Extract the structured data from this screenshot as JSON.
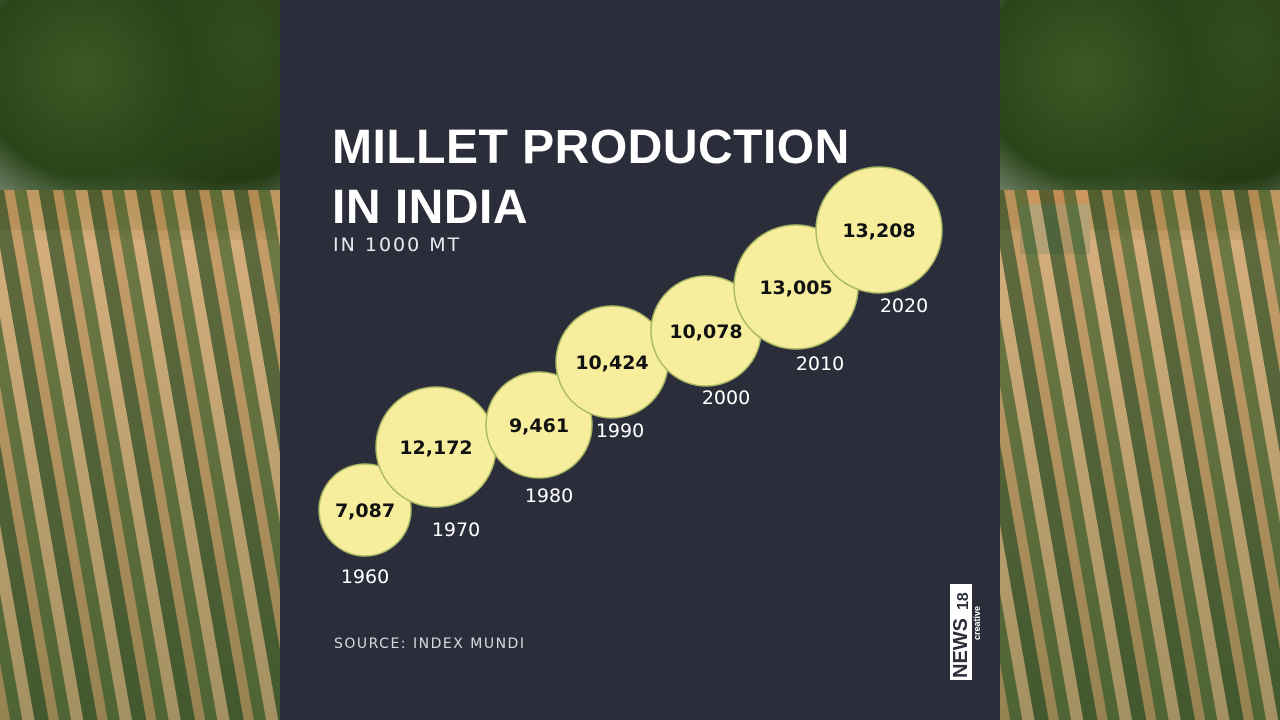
{
  "chart_data": {
    "type": "bubble",
    "title": "MILLET PRODUCTION IN INDIA",
    "subtitle": "IN 1000 MT",
    "source": "SOURCE: INDEX MUNDI",
    "categories": [
      "1960",
      "1970",
      "1980",
      "1990",
      "2000",
      "2010",
      "2020"
    ],
    "values": [
      7087,
      12172,
      9461,
      10424,
      10078,
      13005,
      13208
    ],
    "value_labels": [
      "7,087",
      "12,172",
      "9,461",
      "10,424",
      "10,078",
      "13,005",
      "13,208"
    ],
    "colors": {
      "bubble_fill": "#f7ee9d",
      "bubble_stroke": "#a9b865",
      "background": "#2b2e3a",
      "label": "#ffffff",
      "value_text": "#111111"
    }
  },
  "brand": {
    "logo_text": "NEWS18 creative"
  }
}
